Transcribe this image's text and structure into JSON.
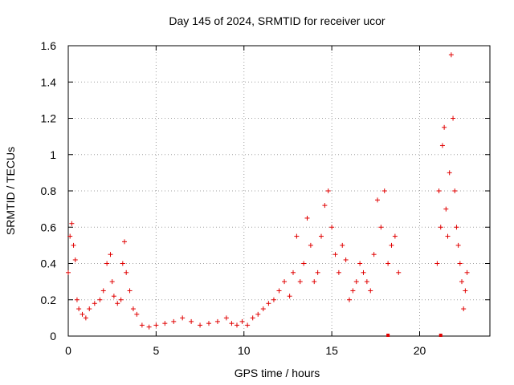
{
  "chart_data": {
    "type": "scatter",
    "title": "Day 145 of 2024, SRMTID for receiver ucor",
    "xlabel": "GPS time / hours",
    "ylabel": "SRMTID / TECUs",
    "xlim": [
      0,
      24
    ],
    "ylim": [
      0,
      1.6
    ],
    "xticks": [
      0,
      5,
      10,
      15,
      20
    ],
    "xtick_labels": [
      "0",
      "5",
      "10",
      "15",
      "20"
    ],
    "yticks": [
      0,
      0.2,
      0.4,
      0.6,
      0.8,
      1.0,
      1.2,
      1.4,
      1.6
    ],
    "ytick_labels": [
      "0",
      "0.2",
      "0.4",
      "0.6",
      "0.8",
      "1",
      "1.2",
      "1.4",
      "1.6"
    ],
    "grid": true,
    "marker": "+",
    "color": "#e00000",
    "series": [
      {
        "name": "SRMTID",
        "x": [
          0.0,
          0.1,
          0.2,
          0.3,
          0.4,
          0.5,
          0.6,
          0.8,
          1.0,
          1.2,
          1.5,
          1.8,
          2.0,
          2.2,
          2.4,
          2.5,
          2.6,
          2.8,
          3.0,
          3.1,
          3.2,
          3.3,
          3.5,
          3.7,
          3.9,
          4.2,
          4.6,
          5.0,
          5.5,
          6.0,
          6.5,
          7.0,
          7.5,
          8.0,
          8.5,
          9.0,
          9.3,
          9.6,
          9.9,
          10.2,
          10.5,
          10.8,
          11.1,
          11.4,
          11.7,
          12.0,
          12.3,
          12.6,
          12.8,
          13.0,
          13.2,
          13.4,
          13.6,
          13.8,
          14.0,
          14.2,
          14.4,
          14.6,
          14.8,
          15.0,
          15.2,
          15.4,
          15.6,
          15.8,
          16.0,
          16.2,
          16.4,
          16.6,
          16.8,
          17.0,
          17.2,
          17.4,
          17.6,
          17.8,
          18.0,
          18.2,
          18.4,
          18.6,
          18.8,
          21.0,
          21.1,
          21.2,
          21.3,
          21.4,
          21.5,
          21.6,
          21.7,
          21.8,
          21.9,
          22.0,
          22.1,
          22.2,
          22.3,
          22.4,
          22.5,
          22.6,
          22.7
        ],
        "y": [
          0.35,
          0.55,
          0.62,
          0.5,
          0.42,
          0.2,
          0.15,
          0.12,
          0.1,
          0.15,
          0.18,
          0.2,
          0.25,
          0.4,
          0.45,
          0.3,
          0.22,
          0.18,
          0.2,
          0.4,
          0.52,
          0.35,
          0.25,
          0.15,
          0.12,
          0.06,
          0.05,
          0.06,
          0.07,
          0.08,
          0.1,
          0.08,
          0.06,
          0.07,
          0.08,
          0.1,
          0.07,
          0.06,
          0.08,
          0.06,
          0.1,
          0.12,
          0.15,
          0.18,
          0.2,
          0.25,
          0.3,
          0.22,
          0.35,
          0.55,
          0.3,
          0.4,
          0.65,
          0.5,
          0.3,
          0.35,
          0.55,
          0.72,
          0.8,
          0.6,
          0.45,
          0.35,
          0.5,
          0.42,
          0.2,
          0.25,
          0.3,
          0.4,
          0.35,
          0.3,
          0.25,
          0.45,
          0.75,
          0.6,
          0.8,
          0.4,
          0.5,
          0.55,
          0.35,
          0.4,
          0.8,
          0.6,
          1.05,
          1.15,
          0.7,
          0.55,
          0.9,
          1.55,
          1.2,
          0.8,
          0.6,
          0.5,
          0.4,
          0.3,
          0.15,
          0.25,
          0.35
        ]
      }
    ],
    "flagged_near_zero_x": [
      18.2,
      21.2
    ]
  }
}
